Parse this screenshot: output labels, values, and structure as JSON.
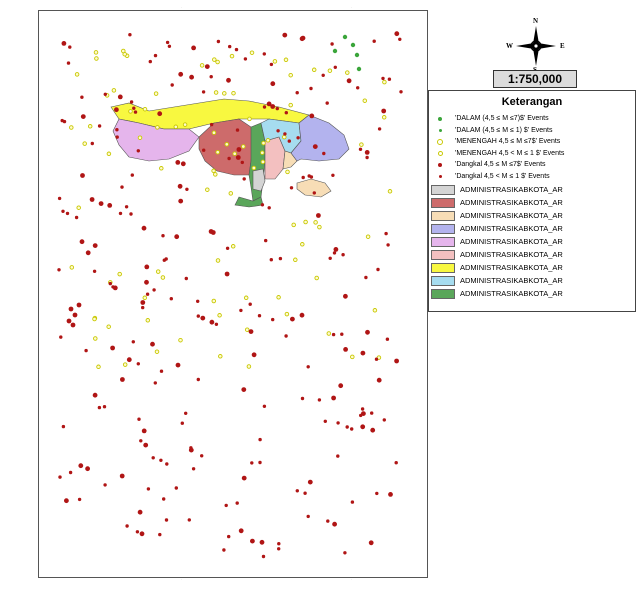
{
  "scale_text": "1:750,000",
  "compass": {
    "n": "N",
    "s": "S",
    "e": "E",
    "w": "W"
  },
  "legend": {
    "title": "Keterangan",
    "point_items": [
      {
        "label": "'DALAM (4,5 ≤ M ≤7)$' Events",
        "color": "#3aa53a",
        "style": "filled"
      },
      {
        "label": "'DALAM (4,5 ≤ M ≤ 1) $' Events",
        "color": "#3aa53a",
        "style": "filled-small"
      },
      {
        "label": "'MENENGAH 4,5 ≤ M ≤7$' Events",
        "color": "#c8c800",
        "style": "ring"
      },
      {
        "label": "'MENENGAH 4,5 < M ≤ 1 $' Events",
        "color": "#c8c800",
        "style": "ring-small"
      },
      {
        "label": "'Dangkal  4,5 ≤ M ≤7$' Events",
        "color": "#b01515",
        "style": "filled"
      },
      {
        "label": "'Dangkal 4,5 < M ≤ 1 $' Events",
        "color": "#b01515",
        "style": "filled-small"
      }
    ],
    "area_items": [
      {
        "label": "ADMINISTRASIKABKOTA_AR",
        "color": "#d4d4d4"
      },
      {
        "label": "ADMINISTRASIKABKOTA_AR",
        "color": "#cd6b6b"
      },
      {
        "label": "ADMINISTRASIKABKOTA_AR",
        "color": "#f7ddb6"
      },
      {
        "label": "ADMINISTRASIKABKOTA_AR",
        "color": "#b3b3ee"
      },
      {
        "label": "ADMINISTRASIKABKOTA_AR",
        "color": "#e5b5ec"
      },
      {
        "label": "ADMINISTRASIKABKOTA_AR",
        "color": "#f3c0c0"
      },
      {
        "label": "ADMINISTRASIKABKOTA_AR",
        "color": "#f8f840"
      },
      {
        "label": "ADMINISTRASIKABKOTA_AR",
        "color": "#a6dcef"
      },
      {
        "label": "ADMINISTRASIKABKOTA_AR",
        "color": "#5aa65a"
      }
    ]
  },
  "colors": {
    "dalam": "#3aa53a",
    "menengah": "#c8c800",
    "dangkal": "#b01515",
    "frame": "#555555"
  }
}
